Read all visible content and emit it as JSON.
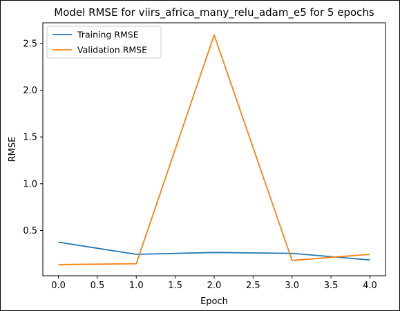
{
  "chart_data": {
    "type": "line",
    "title": "Model RMSE for viirs_africa_many_relu_adam_e5 for 5 epochs",
    "xlabel": "Epoch",
    "ylabel": "RMSE",
    "x": [
      0.0,
      1.0,
      2.0,
      3.0,
      4.0
    ],
    "xlim": [
      -0.2,
      4.2
    ],
    "ylim": [
      0.016,
      2.72
    ],
    "xticks": [
      0.0,
      0.5,
      1.0,
      1.5,
      2.0,
      2.5,
      3.0,
      3.5,
      4.0
    ],
    "xtick_labels": [
      "0.0",
      "0.5",
      "1.0",
      "1.5",
      "2.0",
      "2.5",
      "3.0",
      "3.5",
      "4.0"
    ],
    "yticks": [
      0.5,
      1.0,
      1.5,
      2.0,
      2.5
    ],
    "ytick_labels": [
      "0.5",
      "1.0",
      "1.5",
      "2.0",
      "2.5"
    ],
    "grid": false,
    "legend_position": "top-left",
    "series": [
      {
        "name": "Training RMSE",
        "color": "#1f77b4",
        "values": [
          0.375,
          0.245,
          0.265,
          0.255,
          0.185
        ]
      },
      {
        "name": "Validation RMSE",
        "color": "#ff7f0e",
        "values": [
          0.135,
          0.145,
          2.59,
          0.18,
          0.245
        ]
      }
    ]
  }
}
